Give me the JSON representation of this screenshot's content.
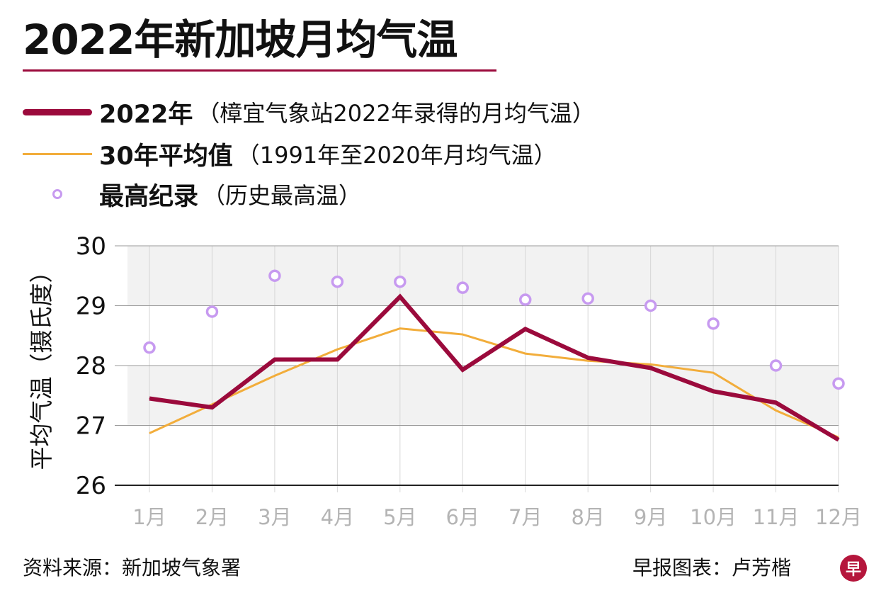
{
  "header": {
    "title": "2022年新加坡月均气温",
    "source": "资料来源：新加坡气象署",
    "credit": "早报图表：卢芳楷",
    "logo_char": "早",
    "logo_color": "#b5163c"
  },
  "legend": [
    {
      "name": "2022年",
      "note": "（樟宜气象站2022年录得的月均气温）",
      "color": "#9b0a3c"
    },
    {
      "name": "30年平均值",
      "note": "（1991年至2020年月均气温）",
      "color": "#f2ad3b"
    },
    {
      "name": "最高纪录",
      "note": "（历史最高温）",
      "color": "#c79af0"
    }
  ],
  "chart_data": {
    "type": "line",
    "categories": [
      "1月",
      "2月",
      "3月",
      "4月",
      "5月",
      "6月",
      "7月",
      "8月",
      "9月",
      "10月",
      "11月",
      "12月"
    ],
    "ylabel": "平均气温（摄氏度）",
    "ylim": [
      26,
      30
    ],
    "yticks": [
      "30",
      "29",
      "28",
      "27",
      "26"
    ],
    "grid": true,
    "legend_position": "top",
    "series": [
      {
        "name": "2022年",
        "style": "line",
        "color": "#9b0a3c",
        "values": [
          27.45,
          27.3,
          28.1,
          28.1,
          29.15,
          27.93,
          28.61,
          28.13,
          27.96,
          27.57,
          27.38,
          26.76
        ]
      },
      {
        "name": "30年平均值",
        "style": "line",
        "color": "#f2ad3b",
        "values": [
          26.87,
          27.35,
          27.83,
          28.27,
          28.62,
          28.52,
          28.2,
          28.08,
          28.02,
          27.88,
          27.25,
          26.8
        ]
      },
      {
        "name": "最高纪录",
        "style": "marker",
        "color": "#c79af0",
        "values": [
          28.3,
          28.9,
          29.5,
          29.4,
          29.4,
          29.3,
          29.1,
          29.12,
          29.0,
          28.7,
          28.0,
          27.7
        ]
      }
    ]
  }
}
